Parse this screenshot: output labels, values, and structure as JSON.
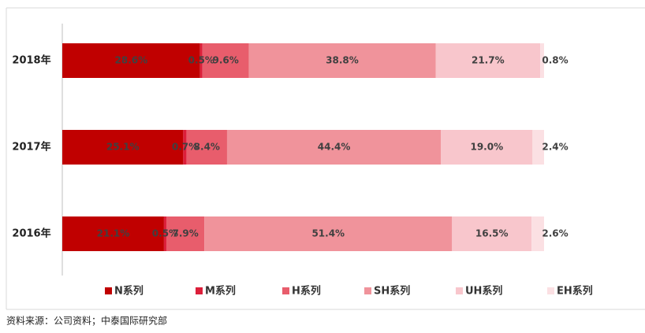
{
  "chart_data": {
    "type": "stacked-bar-horizontal",
    "categories": [
      "2018年",
      "2017年",
      "2016年"
    ],
    "xlim": [
      0,
      100
    ],
    "series": [
      {
        "name": "N系列",
        "color": "#c00000",
        "values": [
          28.6,
          25.1,
          21.1
        ],
        "value_labels": [
          "28.6%",
          "25.1%",
          "21.1%"
        ]
      },
      {
        "name": "M系列",
        "color": "#dc1f3a",
        "values": [
          0.5,
          0.7,
          0.5
        ],
        "value_labels": [
          "0.5%",
          "0.7%",
          "0.5%"
        ]
      },
      {
        "name": "H系列",
        "color": "#e85d6c",
        "values": [
          9.6,
          8.4,
          7.9
        ],
        "value_labels": [
          "9.6%",
          "8.4%",
          "7.9%"
        ]
      },
      {
        "name": "SH系列",
        "color": "#f0939b",
        "values": [
          38.8,
          44.4,
          51.4
        ],
        "value_labels": [
          "38.8%",
          "44.4%",
          "51.4%"
        ]
      },
      {
        "name": "UH系列",
        "color": "#f8c6cc",
        "values": [
          21.7,
          19.0,
          16.5
        ],
        "value_labels": [
          "21.7%",
          "19.0%",
          "16.5%"
        ]
      },
      {
        "name": "EH系列",
        "color": "#fbe0e3",
        "values": [
          0.8,
          2.4,
          2.6
        ],
        "value_labels": [
          "0.8%",
          "2.4%",
          "2.6%"
        ]
      }
    ],
    "note": "资料来源：公司资料；中泰国际研究部"
  }
}
